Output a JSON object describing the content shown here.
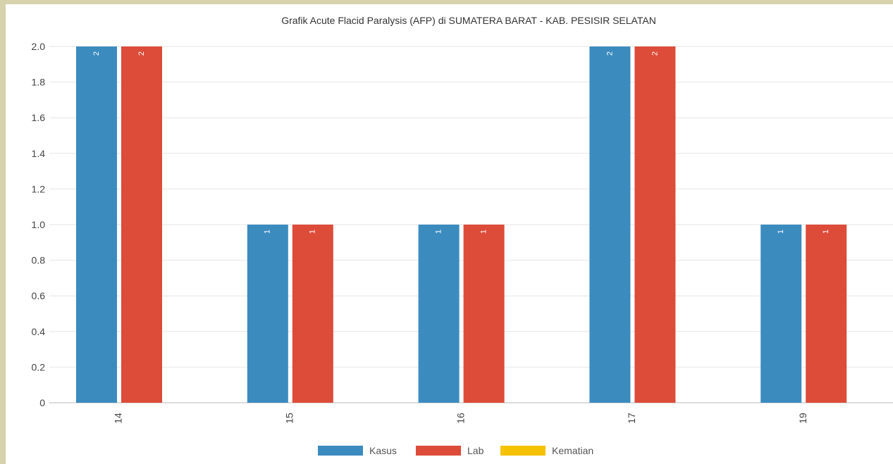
{
  "chart_data": {
    "type": "bar",
    "title": "Grafik Acute Flacid Paralysis (AFP) di SUMATERA BARAT - KAB. PESISIR SELATAN",
    "categories": [
      "14",
      "15",
      "16",
      "17",
      "19"
    ],
    "series": [
      {
        "name": "Kasus",
        "color": "#3b8bbf",
        "values": [
          2,
          1,
          1,
          2,
          1
        ]
      },
      {
        "name": "Lab",
        "color": "#dd4b39",
        "values": [
          2,
          1,
          1,
          2,
          1
        ]
      },
      {
        "name": "Kematian",
        "color": "#f5c200",
        "values": [
          0,
          0,
          0,
          0,
          0
        ]
      }
    ],
    "ylim": [
      0,
      2.0
    ],
    "yticks": [
      "0",
      "0.2",
      "0.4",
      "0.6",
      "0.8",
      "1.0",
      "1.2",
      "1.4",
      "1.6",
      "1.8",
      "2.0"
    ],
    "xlabel": "",
    "ylabel": "",
    "grid": true,
    "legend_position": "bottom-center",
    "data_labels": true
  }
}
